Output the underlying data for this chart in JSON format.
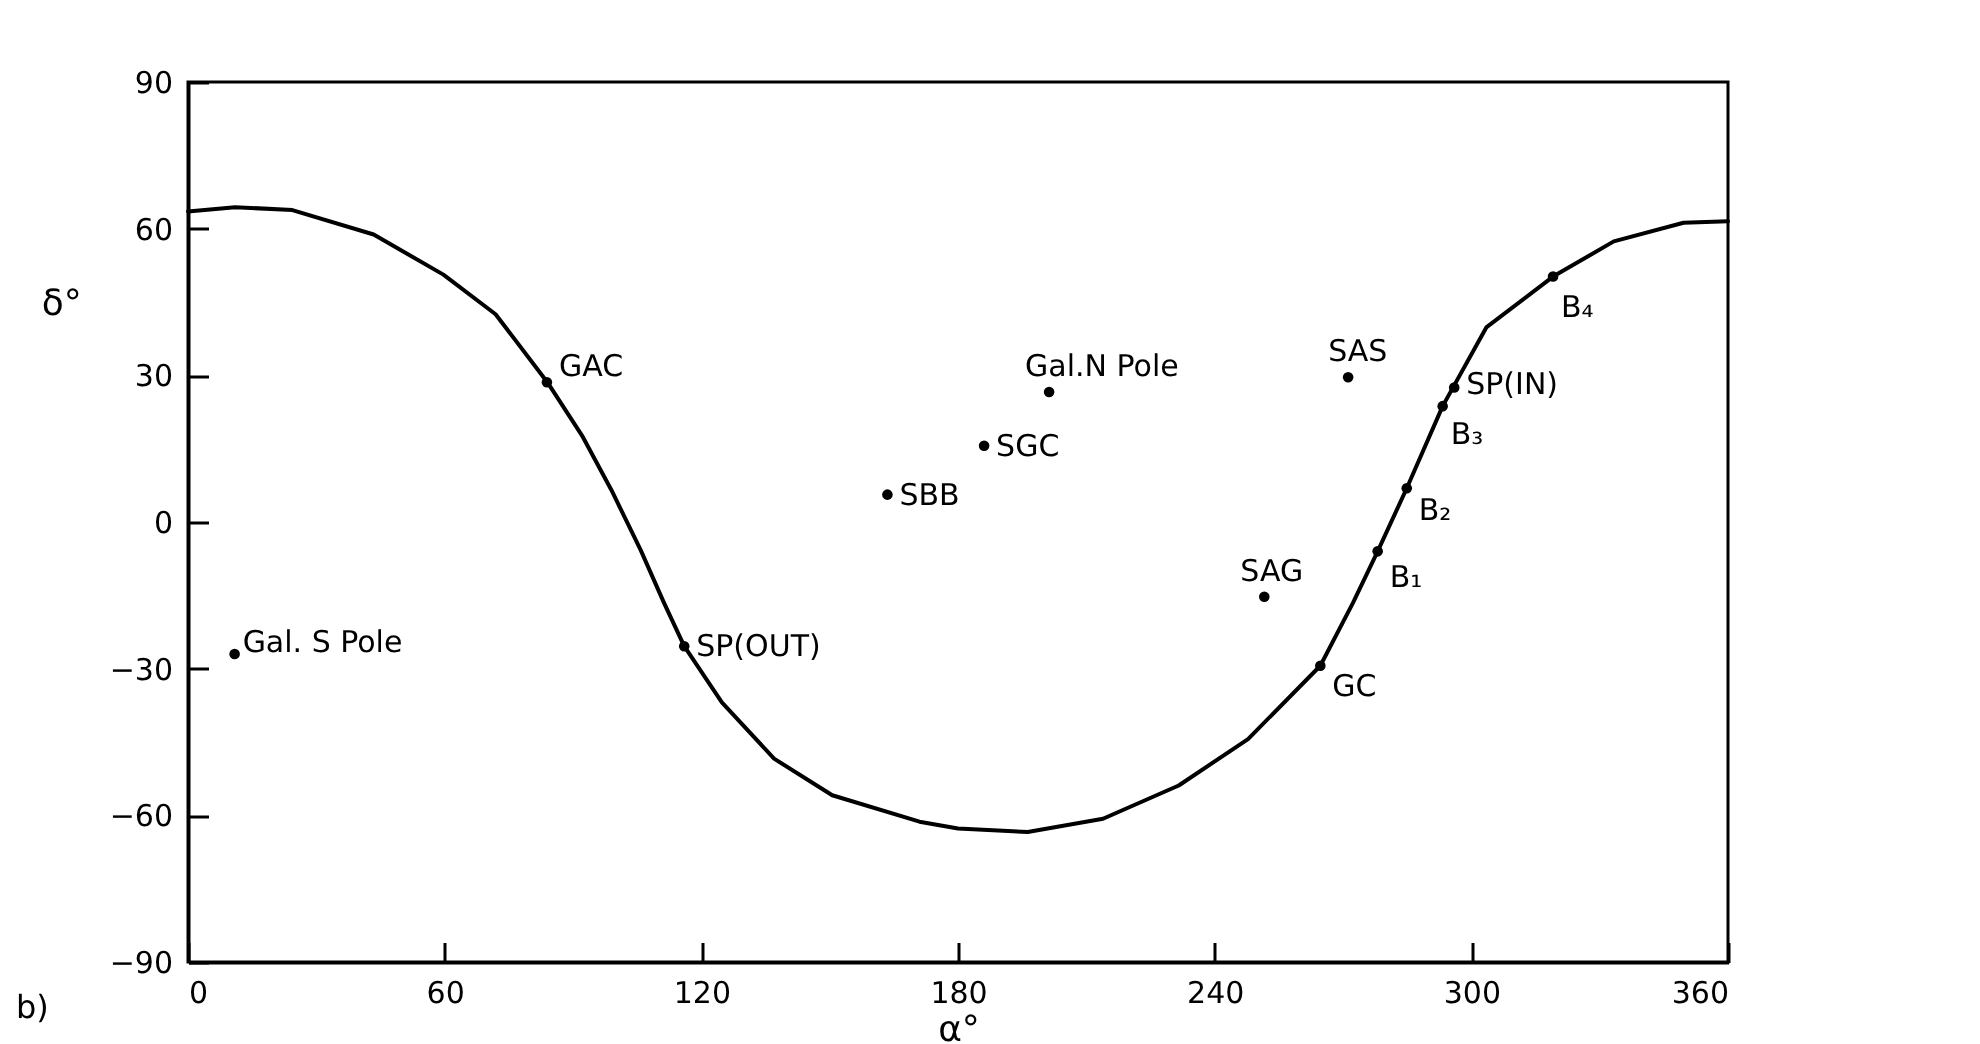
{
  "chart_data": {
    "type": "scatter",
    "xlabel": "α°",
    "ylabel": "δ°",
    "xlim": [
      0,
      360
    ],
    "xticks": [
      0,
      60,
      120,
      180,
      240,
      300,
      360
    ],
    "ylim": [
      -90,
      90
    ],
    "yticks": [
      -90,
      -60,
      -30,
      0,
      30,
      60,
      90
    ],
    "grid": false,
    "marker": "circle",
    "series": [
      {
        "type": "line",
        "color": "#000000",
        "line_style": "solid",
        "marker": "none",
        "x": [
          0,
          11,
          24.4,
          43.4,
          59.7,
          71.9,
          84,
          92.3,
          99,
          105.8,
          111.3,
          116,
          124.8,
          137,
          150.6,
          171,
          180,
          196.3,
          213.9,
          231.6,
          247.8,
          264.7,
          272.3,
          278.1,
          284.9,
          293.3,
          303.5,
          319.1,
          333.3,
          349.6,
          360
        ],
        "values": [
          63.5,
          64.4,
          63.8,
          58.8,
          50.6,
          42.5,
          28.6,
          17.4,
          6.5,
          -5.7,
          -16.6,
          -25.4,
          -36.9,
          -48.4,
          -55.9,
          -61.3,
          -62.7,
          -63.4,
          -60.7,
          -53.9,
          -44.4,
          -29.4,
          -16.6,
          -6,
          6.9,
          23.7,
          39.8,
          50.2,
          57.4,
          61.2,
          61.5
        ]
      },
      {
        "color": "#000000",
        "x": [
          10.9,
          83.9,
          116,
          163.5,
          186.1,
          201.3,
          271.2,
          251.6,
          264.7,
          278.1,
          284.9,
          293.3,
          296,
          319.1
        ],
        "values": [
          -27,
          28.6,
          -25.4,
          5.6,
          15.6,
          26.6,
          29.6,
          -15.3,
          -29.4,
          -6,
          6.9,
          23.7,
          27.5,
          50.2
        ]
      }
    ],
    "annotations": [
      {
        "text": "Gal. S Pole",
        "x": 10.9,
        "y": -27
      },
      {
        "text": "GAC",
        "x": 83.9,
        "y": 28.6
      },
      {
        "text": "SP(OUT)",
        "x": 116,
        "y": -25.4
      },
      {
        "text": "SBB",
        "x": 163.5,
        "y": 5.6
      },
      {
        "text": "SGC",
        "x": 186.1,
        "y": 15.6
      },
      {
        "text": "Gal.N Pole",
        "x": 201.3,
        "y": 26.6
      },
      {
        "text": "SAS",
        "x": 271.2,
        "y": 29.6
      },
      {
        "text": "SAG",
        "x": 251.6,
        "y": -15.3
      },
      {
        "text": "GC",
        "x": 264.7,
        "y": -29.4
      },
      {
        "text": "B₁",
        "x": 278.1,
        "y": -6
      },
      {
        "text": "B₂",
        "x": 284.9,
        "y": 6.9
      },
      {
        "text": "B₃",
        "x": 293.3,
        "y": 23.7
      },
      {
        "text": "SP(IN)",
        "x": 296,
        "y": 27.5
      },
      {
        "text": "B₄",
        "x": 319.1,
        "y": 50.2
      },
      "b)"
    ]
  }
}
